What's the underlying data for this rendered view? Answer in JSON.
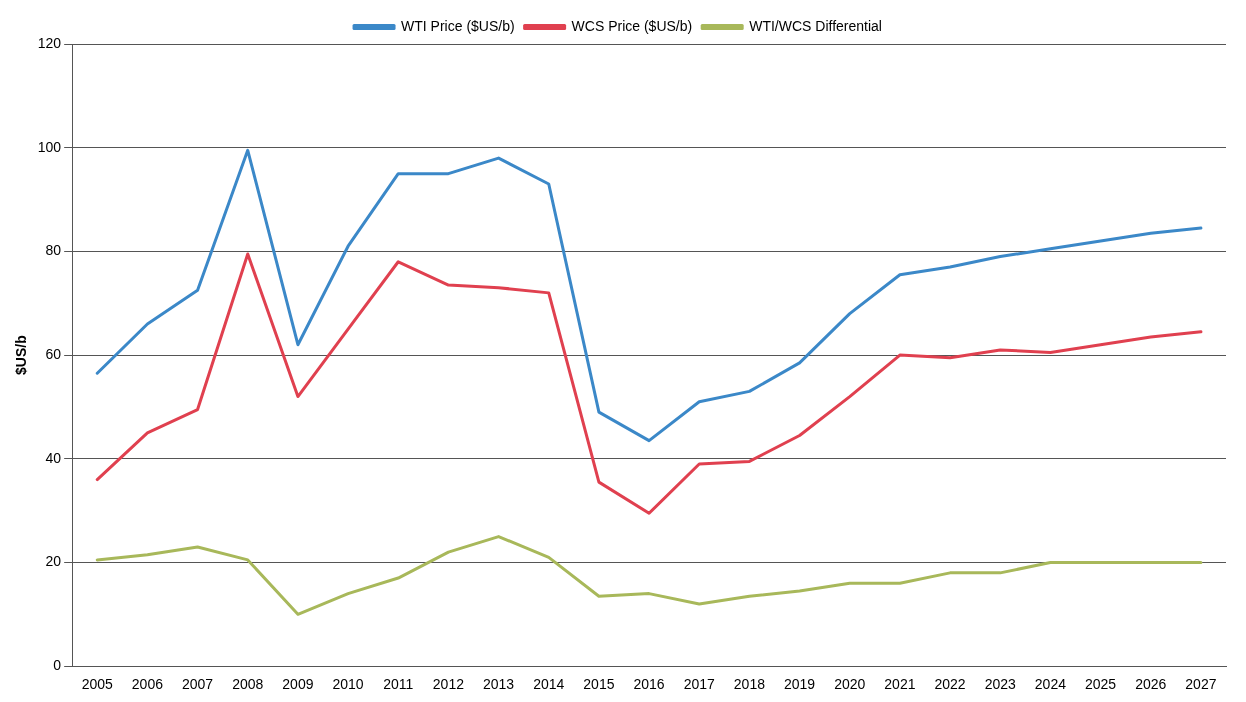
{
  "chart_data": {
    "type": "line",
    "ylabel": "$US/b",
    "categories": [
      "2005",
      "2006",
      "2007",
      "2008",
      "2009",
      "2010",
      "2011",
      "2012",
      "2013",
      "2014",
      "2015",
      "2016",
      "2017",
      "2018",
      "2019",
      "2020",
      "2021",
      "2022",
      "2023",
      "2024",
      "2025",
      "2026",
      "2027"
    ],
    "series": [
      {
        "name": "WTI Price ($US/b)",
        "color": "#3b88c8",
        "values": [
          56.5,
          66,
          72.5,
          99.5,
          62,
          81,
          95,
          95,
          98,
          93,
          49,
          43.5,
          51,
          53,
          58.5,
          68,
          75.5,
          77,
          79,
          80.5,
          82,
          83.5,
          84.5
        ]
      },
      {
        "name": "WCS Price ($US/b)",
        "color": "#e0404f",
        "values": [
          36,
          45,
          49.5,
          79.5,
          52,
          65,
          78,
          73.5,
          73,
          72,
          35.5,
          29.5,
          39,
          39.5,
          44.5,
          52,
          60,
          59.5,
          61,
          60.5,
          62,
          63.5,
          64.5
        ]
      },
      {
        "name": "WTI/WCS Differential",
        "color": "#a8b85a",
        "values": [
          20.5,
          21.5,
          23,
          20.5,
          10,
          14,
          17,
          22,
          25,
          21,
          13.5,
          14,
          12,
          13.5,
          14.5,
          16,
          16,
          18,
          18,
          20,
          20,
          20,
          20
        ]
      }
    ],
    "ylim": [
      0,
      120
    ],
    "yticks": [
      0,
      20,
      40,
      60,
      80,
      100,
      120
    ],
    "grid": "y",
    "legend": "top",
    "marker": "none",
    "line_style": "solid"
  }
}
